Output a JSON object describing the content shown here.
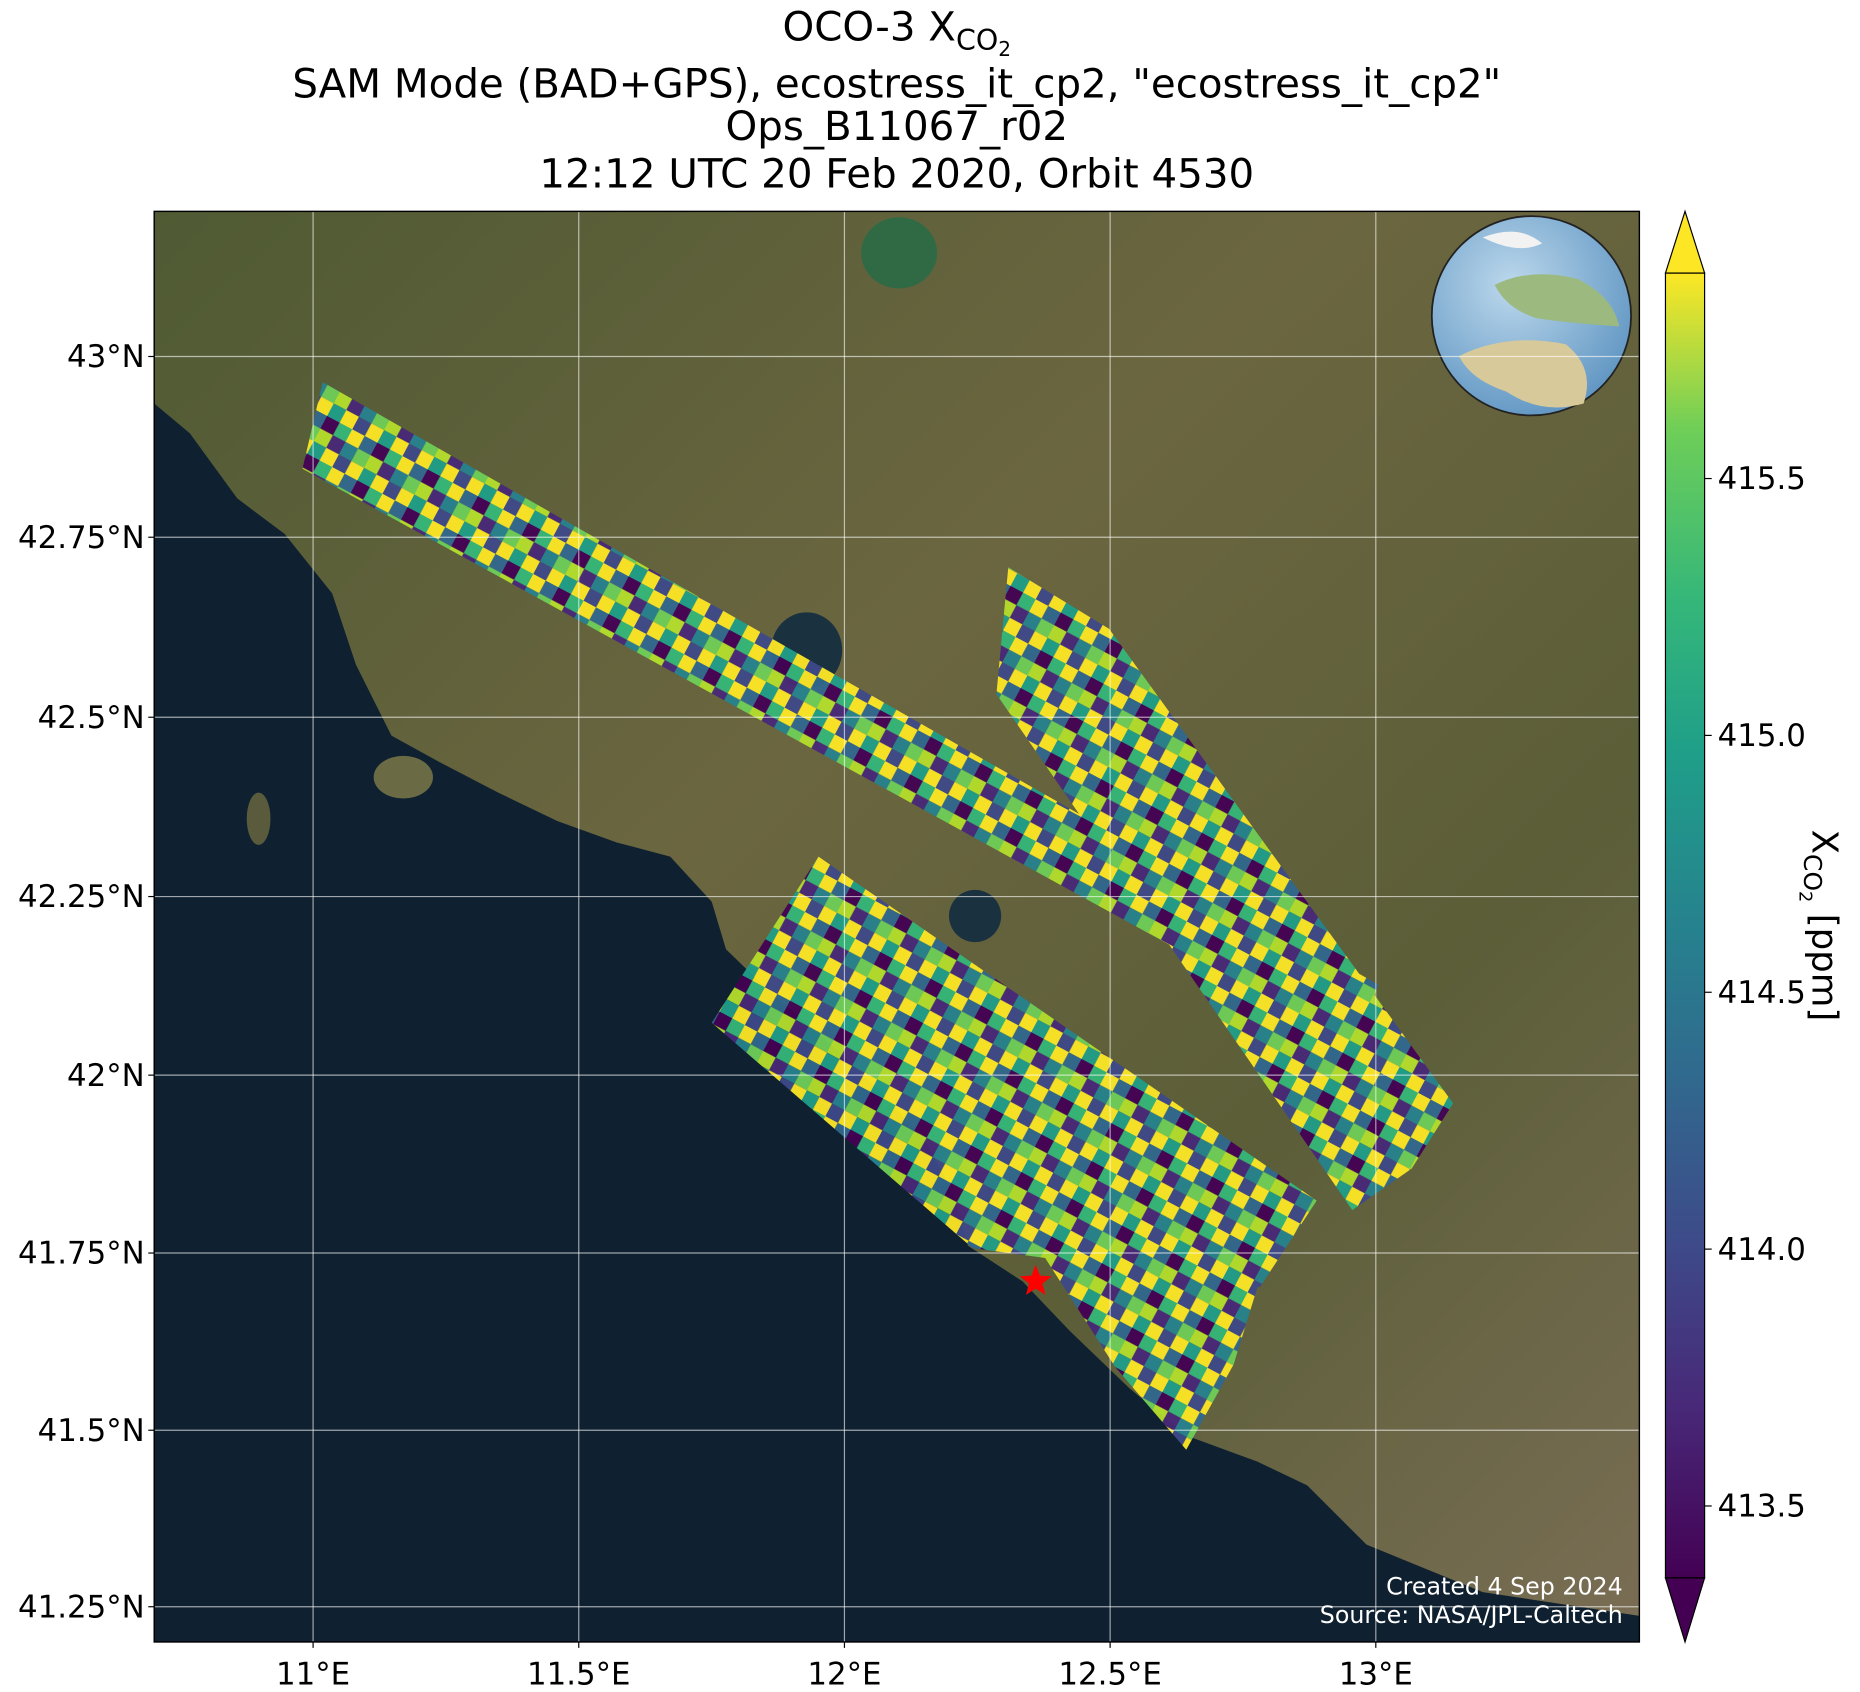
{
  "title": {
    "line1": "OCO-3 X",
    "line1_sub": "CO",
    "line1_subsub": "2",
    "line2": "SAM Mode (BAD+GPS), ecostress_it_cp2, \"ecostress_it_cp2\"",
    "line3": "Ops_B11067_r02",
    "line4": "12:12 UTC 20 Feb 2020, Orbit 4530"
  },
  "map": {
    "xlim": [
      10.701,
      13.496
    ],
    "ylim": [
      41.2,
      43.2
    ],
    "projection": "mercator",
    "grid": true,
    "xticks": [
      {
        "value": 11,
        "label": "11°E"
      },
      {
        "value": 11.5,
        "label": "11.5°E"
      },
      {
        "value": 12,
        "label": "12°E"
      },
      {
        "value": 12.5,
        "label": "12.5°E"
      },
      {
        "value": 13,
        "label": "13°E"
      }
    ],
    "yticks": [
      {
        "value": 41.25,
        "label": "41.25°N"
      },
      {
        "value": 41.5,
        "label": "41.5°N"
      },
      {
        "value": 41.75,
        "label": "41.75°N"
      },
      {
        "value": 42,
        "label": "42°N"
      },
      {
        "value": 42.25,
        "label": "42.25°N"
      },
      {
        "value": 42.5,
        "label": "42.5°N"
      },
      {
        "value": 42.75,
        "label": "42.75°N"
      },
      {
        "value": 43,
        "label": "43°N"
      }
    ],
    "site": {
      "lon": 12.36,
      "lat": 41.71,
      "color": "#ff0000"
    }
  },
  "colorbar": {
    "colormap": "viridis",
    "extend": "both",
    "lim": [
      413.36,
      415.9
    ],
    "label": "X",
    "label_sub": "CO",
    "label_subsub": "2",
    "label_units": " [ppm]",
    "ticks": [
      413.5,
      {
        "value": 414,
        "label": "414.0"
      },
      414.5,
      {
        "value": 415,
        "label": "415.0"
      },
      415.5
    ]
  },
  "annotations": {
    "created": "Created 4 Sep 2024",
    "source": "Source: NASA/JPL-Caltech"
  }
}
